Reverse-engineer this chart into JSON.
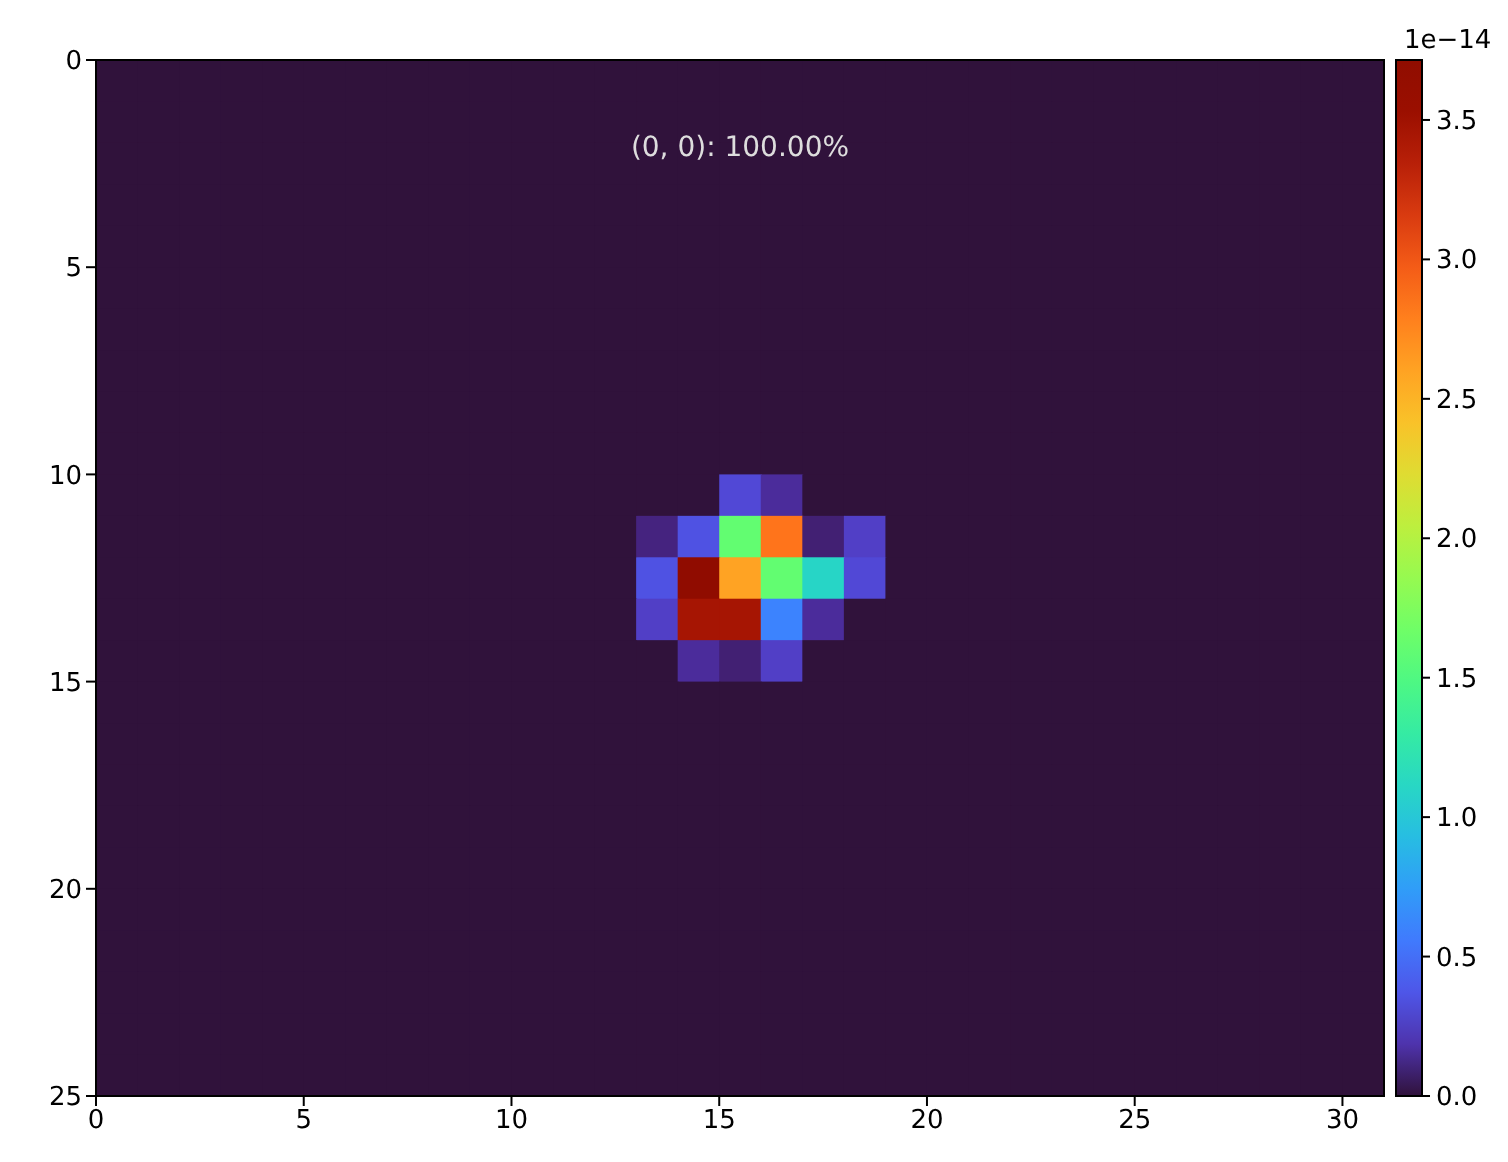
{
  "chart_data": {
    "type": "heatmap",
    "annotations": [
      "(0, 0): 100.00%"
    ],
    "xlim": [
      0,
      31
    ],
    "xticks": [
      0,
      5,
      10,
      15,
      20,
      25,
      30
    ],
    "ylim": [
      25,
      0
    ],
    "yticks": [
      0,
      5,
      10,
      15,
      20,
      25
    ],
    "clabel": "1e−14",
    "clim": [
      0,
      3.715
    ],
    "cticks": [
      {
        "value": 0,
        "label": "0.0"
      },
      {
        "value": 0.5,
        "label": "0.5"
      },
      {
        "value": 1,
        "label": "1.0"
      },
      {
        "value": 1.5,
        "label": "1.5"
      },
      {
        "value": 2,
        "label": "2.0"
      },
      {
        "value": 2.5,
        "label": "2.5"
      },
      {
        "value": 3,
        "label": "3.0"
      },
      {
        "value": 3.5,
        "label": "3.5"
      }
    ],
    "cells": [
      [
        0,
        0,
        0,
        0,
        0,
        0,
        0,
        0,
        0,
        0,
        0,
        0,
        0,
        0,
        0,
        0,
        0,
        0,
        0,
        0,
        0,
        0,
        0,
        0,
        0,
        0,
        0,
        0,
        0,
        0,
        0
      ],
      [
        0,
        0,
        0,
        0,
        0,
        0,
        0,
        0,
        0,
        0,
        0,
        0,
        0,
        0,
        0,
        0,
        0,
        0,
        0,
        0,
        0,
        0,
        0,
        0,
        0,
        0,
        0,
        0,
        0,
        0,
        0
      ],
      [
        0,
        0,
        0,
        0,
        0,
        0,
        0,
        0,
        0,
        0,
        0,
        0,
        0,
        0,
        0,
        0,
        0,
        0,
        0,
        0,
        0,
        0,
        0,
        0,
        0,
        0,
        0,
        0,
        0,
        0,
        0
      ],
      [
        0,
        0,
        0,
        0,
        0,
        0,
        0,
        0,
        0,
        0,
        0,
        0,
        0,
        0,
        0,
        0,
        0,
        0,
        0,
        0,
        0,
        0,
        0,
        0,
        0,
        0,
        0,
        0,
        0,
        0,
        0
      ],
      [
        0,
        0,
        0,
        0,
        0,
        0,
        0,
        0,
        0,
        0,
        0,
        0,
        0,
        0,
        0,
        0,
        0,
        0,
        0,
        0,
        0,
        0,
        0,
        0,
        0,
        0,
        0,
        0,
        0,
        0,
        0
      ],
      [
        0,
        0,
        0,
        0,
        0,
        0,
        0,
        0,
        0,
        0,
        0,
        0,
        0,
        0,
        0,
        0,
        0,
        0,
        0,
        0,
        0,
        0,
        0,
        0,
        0,
        0,
        0,
        0,
        0,
        0,
        0
      ],
      [
        0,
        0,
        0,
        0,
        0,
        0,
        0,
        0,
        0,
        0,
        0,
        0,
        0,
        0,
        0,
        0,
        0,
        0,
        0,
        0,
        0,
        0,
        0,
        0,
        0,
        0,
        0,
        0,
        0,
        0,
        0
      ],
      [
        0,
        0,
        0,
        0,
        0,
        0,
        0,
        0,
        0,
        0,
        0,
        0,
        0,
        0,
        0,
        0,
        0,
        0,
        0,
        0,
        0,
        0,
        0,
        0,
        0,
        0,
        0,
        0,
        0,
        0,
        0
      ],
      [
        0,
        0,
        0,
        0,
        0,
        0,
        0,
        0,
        0,
        0,
        0,
        0,
        0,
        0,
        0,
        0,
        0,
        0,
        0,
        0,
        0,
        0,
        0,
        0,
        0,
        0,
        0,
        0,
        0,
        0,
        0
      ],
      [
        0,
        0,
        0,
        0,
        0,
        0,
        0,
        0,
        0,
        0,
        0,
        0,
        0,
        0,
        0,
        0,
        0,
        0,
        0,
        0,
        0,
        0,
        0,
        0,
        0,
        0,
        0,
        0,
        0,
        0,
        0
      ],
      [
        0,
        0,
        0,
        0,
        0,
        0,
        0,
        0,
        0,
        0,
        0,
        0,
        0,
        0,
        0,
        0.3,
        0.15,
        0,
        0,
        0,
        0,
        0,
        0,
        0,
        0,
        0,
        0,
        0,
        0,
        0,
        0
      ],
      [
        0,
        0,
        0,
        0,
        0,
        0,
        0,
        0,
        0,
        0,
        0,
        0,
        0,
        0.1,
        0.35,
        1.6,
        2.85,
        0.08,
        0.25,
        0,
        0,
        0,
        0,
        0,
        0,
        0,
        0,
        0,
        0,
        0,
        0
      ],
      [
        0,
        0,
        0,
        0,
        0,
        0,
        0,
        0,
        0,
        0,
        0,
        0,
        0,
        0.35,
        3.7,
        2.6,
        1.6,
        1.1,
        0.3,
        0,
        0,
        0,
        0,
        0,
        0,
        0,
        0,
        0,
        0,
        0,
        0
      ],
      [
        0,
        0,
        0,
        0,
        0,
        0,
        0,
        0,
        0,
        0,
        0,
        0,
        0,
        0.25,
        3.45,
        3.45,
        0.6,
        0.15,
        0,
        0,
        0,
        0,
        0,
        0,
        0,
        0,
        0,
        0,
        0,
        0,
        0
      ],
      [
        0,
        0,
        0,
        0,
        0,
        0,
        0,
        0,
        0,
        0,
        0,
        0,
        0,
        0,
        0.15,
        0.08,
        0.25,
        0,
        0,
        0,
        0,
        0,
        0,
        0,
        0,
        0,
        0,
        0,
        0,
        0,
        0
      ],
      [
        0,
        0,
        0,
        0,
        0,
        0,
        0,
        0,
        0,
        0,
        0,
        0,
        0,
        0,
        0,
        0,
        0,
        0,
        0,
        0,
        0,
        0,
        0,
        0,
        0,
        0,
        0,
        0,
        0,
        0,
        0
      ],
      [
        0,
        0,
        0,
        0,
        0,
        0,
        0,
        0,
        0,
        0,
        0,
        0,
        0,
        0,
        0,
        0,
        0,
        0,
        0,
        0,
        0,
        0,
        0,
        0,
        0,
        0,
        0,
        0,
        0,
        0,
        0
      ],
      [
        0,
        0,
        0,
        0,
        0,
        0,
        0,
        0,
        0,
        0,
        0,
        0,
        0,
        0,
        0,
        0,
        0,
        0,
        0,
        0,
        0,
        0,
        0,
        0,
        0,
        0,
        0,
        0,
        0,
        0,
        0
      ],
      [
        0,
        0,
        0,
        0,
        0,
        0,
        0,
        0,
        0,
        0,
        0,
        0,
        0,
        0,
        0,
        0,
        0,
        0,
        0,
        0,
        0,
        0,
        0,
        0,
        0,
        0,
        0,
        0,
        0,
        0,
        0
      ],
      [
        0,
        0,
        0,
        0,
        0,
        0,
        0,
        0,
        0,
        0,
        0,
        0,
        0,
        0,
        0,
        0,
        0,
        0,
        0,
        0,
        0,
        0,
        0,
        0,
        0,
        0,
        0,
        0,
        0,
        0,
        0
      ],
      [
        0,
        0,
        0,
        0,
        0,
        0,
        0,
        0,
        0,
        0,
        0,
        0,
        0,
        0,
        0,
        0,
        0,
        0,
        0,
        0,
        0,
        0,
        0,
        0,
        0,
        0,
        0,
        0,
        0,
        0,
        0
      ],
      [
        0,
        0,
        0,
        0,
        0,
        0,
        0,
        0,
        0,
        0,
        0,
        0,
        0,
        0,
        0,
        0,
        0,
        0,
        0,
        0,
        0,
        0,
        0,
        0,
        0,
        0,
        0,
        0,
        0,
        0,
        0
      ],
      [
        0,
        0,
        0,
        0,
        0,
        0,
        0,
        0,
        0,
        0,
        0,
        0,
        0,
        0,
        0,
        0,
        0,
        0,
        0,
        0,
        0,
        0,
        0,
        0,
        0,
        0,
        0,
        0,
        0,
        0,
        0
      ],
      [
        0,
        0,
        0,
        0,
        0,
        0,
        0,
        0,
        0,
        0,
        0,
        0,
        0,
        0,
        0,
        0,
        0,
        0,
        0,
        0,
        0,
        0,
        0,
        0,
        0,
        0,
        0,
        0,
        0,
        0,
        0
      ],
      [
        0,
        0,
        0,
        0,
        0,
        0,
        0,
        0,
        0,
        0,
        0,
        0,
        0,
        0,
        0,
        0,
        0,
        0,
        0,
        0,
        0,
        0,
        0,
        0,
        0,
        0,
        0,
        0,
        0,
        0,
        0
      ]
    ]
  }
}
